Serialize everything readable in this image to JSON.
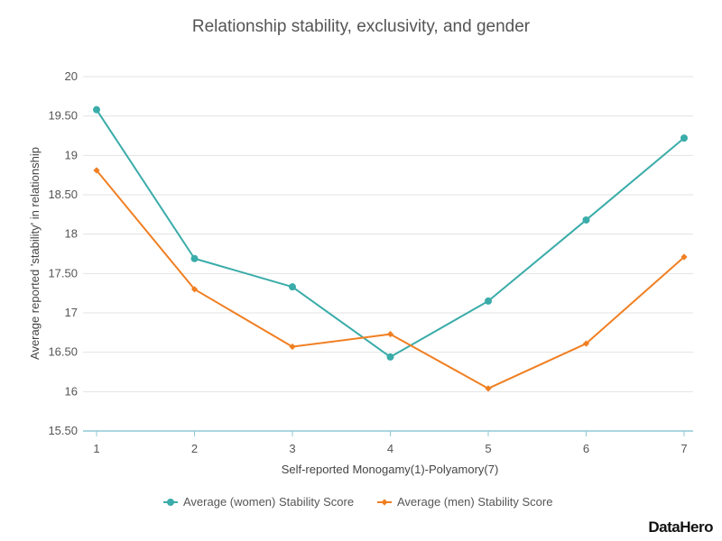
{
  "chart_data": {
    "type": "line",
    "title": "Relationship stability, exclusivity, and gender",
    "xlabel": "Self-reported Monogamy(1)-Polyamory(7)",
    "ylabel": "Average reported 'stability' in relationship",
    "x": [
      1,
      2,
      3,
      4,
      5,
      6,
      7
    ],
    "ylim": [
      15.5,
      20
    ],
    "yticks": [
      "15.50",
      "16",
      "16.50",
      "17",
      "17.50",
      "18",
      "18.50",
      "19",
      "19.50",
      "20"
    ],
    "ytick_values": [
      15.5,
      16,
      16.5,
      17,
      17.5,
      18,
      18.5,
      19,
      19.5,
      20
    ],
    "grid": true,
    "legend": "bottom-center",
    "series": [
      {
        "name": "Average (women) Stability Score",
        "color": "#3aaca9",
        "marker": "circle",
        "values": [
          19.58,
          17.69,
          17.33,
          16.44,
          17.15,
          18.18,
          19.22
        ]
      },
      {
        "name": "Average (men) Stability Score",
        "color": "#f07f22",
        "marker": "diamond",
        "values": [
          18.81,
          17.3,
          16.57,
          16.73,
          16.04,
          16.61,
          17.71
        ]
      }
    ]
  },
  "brand": {
    "name": "DataHero"
  }
}
